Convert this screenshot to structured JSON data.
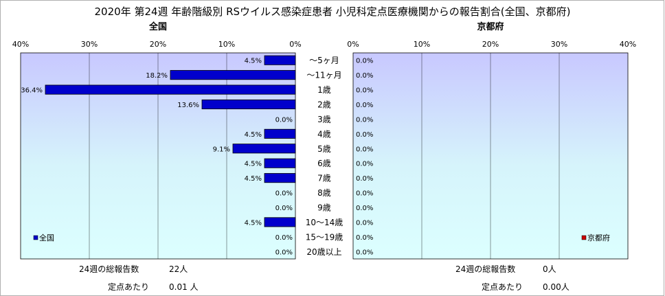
{
  "chart_data": {
    "type": "bar",
    "title": "2020年 第24週 年齢階級別 RSウイルス感染症患者 小児科定点医療機関からの報告割合(全国、京都府)",
    "categories": [
      "～5ヶ月",
      "～11ヶ月",
      "1歳",
      "2歳",
      "3歳",
      "4歳",
      "5歳",
      "6歳",
      "7歳",
      "8歳",
      "9歳",
      "10～14歳",
      "15～19歳",
      "20歳以上"
    ],
    "xlim": [
      0,
      40
    ],
    "ticks": [
      "0%",
      "10%",
      "20%",
      "30%",
      "40%"
    ],
    "grid": true,
    "panels": [
      {
        "subtitle": "全国",
        "name": "全国",
        "legend_placement": "bottom-left",
        "values": [
          4.5,
          18.2,
          36.4,
          13.6,
          0.0,
          4.5,
          9.1,
          4.5,
          4.5,
          0.0,
          0.0,
          4.5,
          0.0,
          0.0
        ],
        "labels": [
          "4.5%",
          "18.2%",
          "36.4%",
          "13.6%",
          "0.0%",
          "4.5%",
          "9.1%",
          "4.5%",
          "4.5%",
          "0.0%",
          "0.0%",
          "4.5%",
          "0.0%",
          "0.0%"
        ],
        "color": "#0000cc",
        "total_label": "24週の総報告数",
        "total_value": "22人",
        "per_label": "定点あたり",
        "per_value": "0.01 人"
      },
      {
        "subtitle": "京都府",
        "name": "京都府",
        "legend_placement": "bottom-right",
        "values": [
          0,
          0,
          0,
          0,
          0,
          0,
          0,
          0,
          0,
          0,
          0,
          0,
          0,
          0
        ],
        "labels": [
          "0.0%",
          "0.0%",
          "0.0%",
          "0.0%",
          "0.0%",
          "0.0%",
          "0.0%",
          "0.0%",
          "0.0%",
          "0.0%",
          "0.0%",
          "0.0%",
          "0.0%",
          "0.0%"
        ],
        "color": "#cc0000",
        "total_label": "24週の総報告数",
        "total_value": "0人",
        "per_label": "定点あたり",
        "per_value": "0.00人"
      }
    ]
  }
}
